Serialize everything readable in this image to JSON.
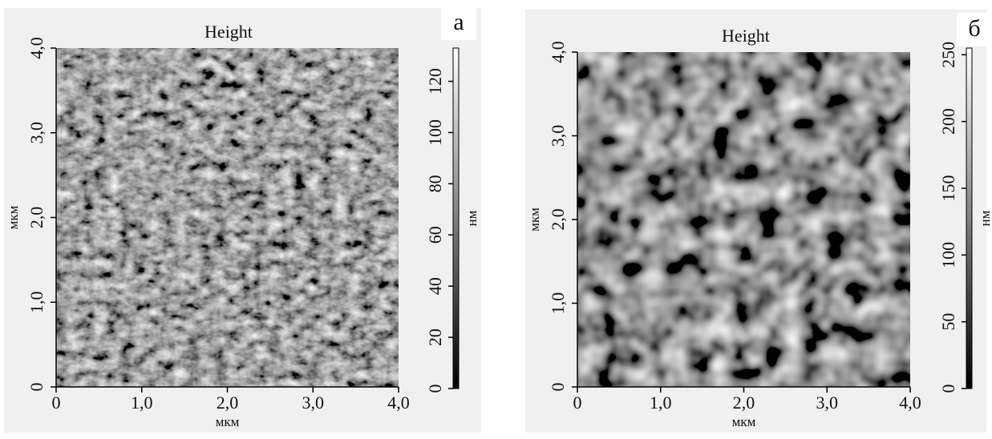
{
  "chart_data": [
    {
      "type": "image",
      "title": "Height",
      "panel_label": "а",
      "xlabel": "мкм",
      "ylabel": "мкм",
      "xlim": [
        0,
        4
      ],
      "ylim": [
        0,
        4
      ],
      "xticks": [
        0,
        {
          "value": 1,
          "label": "1,0"
        },
        {
          "value": 2,
          "label": "2,0"
        },
        {
          "value": 3,
          "label": "3,0"
        },
        {
          "value": 4,
          "label": "4,0"
        }
      ],
      "yticks": [
        0,
        {
          "value": 1,
          "label": "1,0"
        },
        {
          "value": 2,
          "label": "2,0"
        },
        {
          "value": 3,
          "label": "3,0"
        },
        {
          "value": 4,
          "label": "4,0"
        }
      ],
      "colorbar_label": "нм",
      "clim": [
        0,
        133
      ],
      "cticks": [
        0,
        20,
        40,
        60,
        80,
        100,
        120
      ]
    },
    {
      "type": "image",
      "title": "Height",
      "panel_label": "б",
      "xlabel": "мкм",
      "ylabel": "мкм",
      "xlim": [
        0,
        4
      ],
      "ylim": [
        0,
        4
      ],
      "xticks": [
        0,
        {
          "value": 1,
          "label": "1,0"
        },
        {
          "value": 2,
          "label": "2,0"
        },
        {
          "value": 3,
          "label": "3,0"
        },
        {
          "value": 4,
          "label": "4,0"
        }
      ],
      "yticks": [
        0,
        {
          "value": 1,
          "label": "1,0"
        },
        {
          "value": 2,
          "label": "2,0"
        },
        {
          "value": 3,
          "label": "3,0"
        },
        {
          "value": 4,
          "label": "4,0"
        }
      ],
      "colorbar_label": "нм",
      "clim": [
        0,
        255
      ],
      "cticks": [
        0,
        50,
        100,
        150,
        200,
        250
      ]
    }
  ]
}
